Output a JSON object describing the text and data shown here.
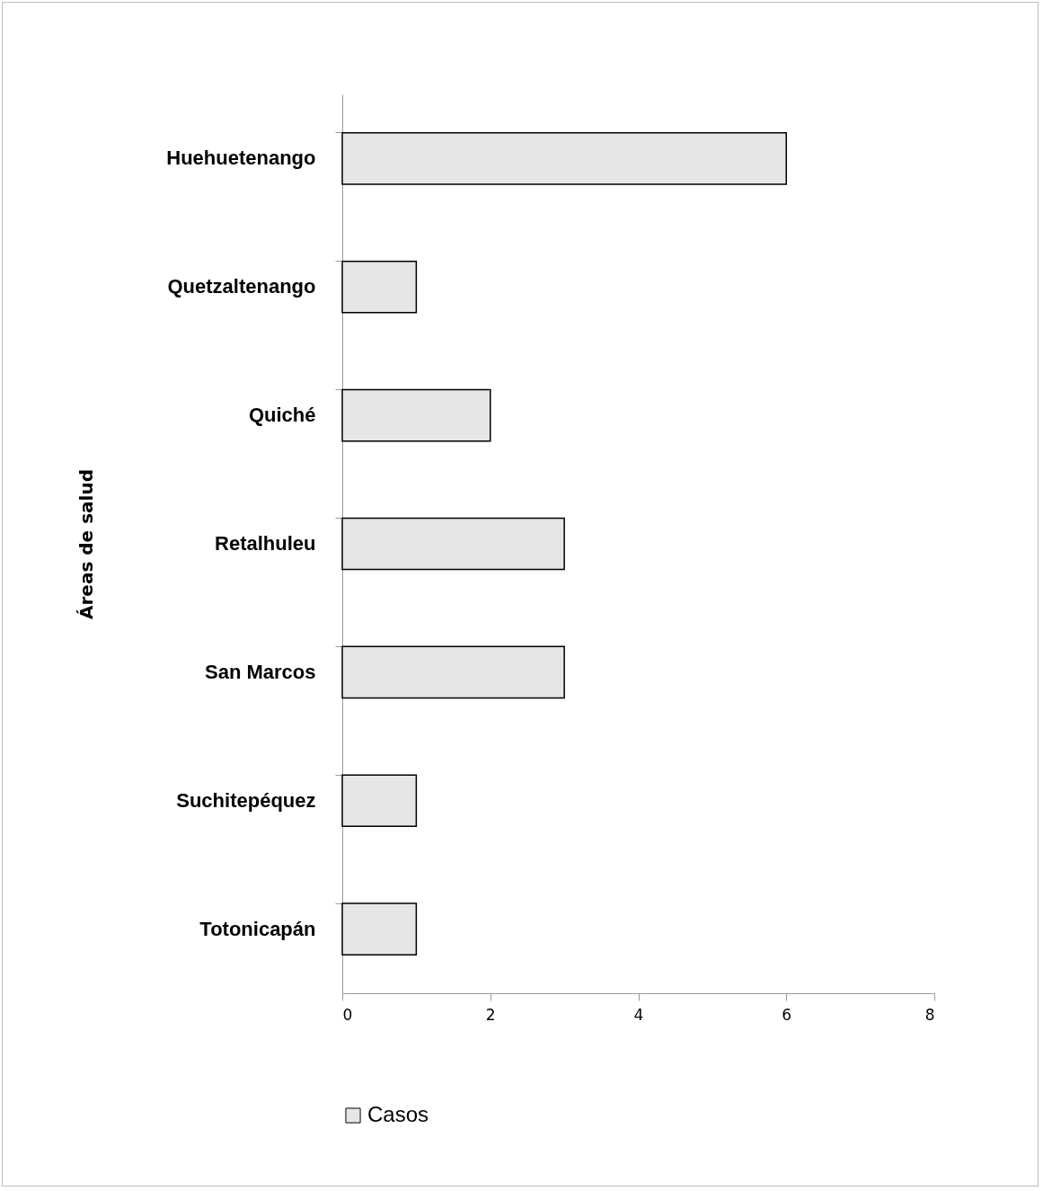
{
  "chart_data": {
    "type": "bar",
    "orientation": "horizontal",
    "ylabel": "Áreas de salud",
    "categories": [
      "Huehuetenango",
      "Quetzaltenango",
      "Quiché",
      "Retalhuleu",
      "San Marcos",
      "Suchitepéquez",
      "Totonicapán"
    ],
    "series": [
      {
        "name": "Casos",
        "color": "#e6e6e6",
        "values": [
          6,
          1,
          2,
          3,
          3,
          1,
          1
        ]
      }
    ],
    "xlim": [
      0,
      8
    ],
    "xticks": [
      0,
      2,
      4,
      6,
      8
    ],
    "legend": "bottom"
  }
}
